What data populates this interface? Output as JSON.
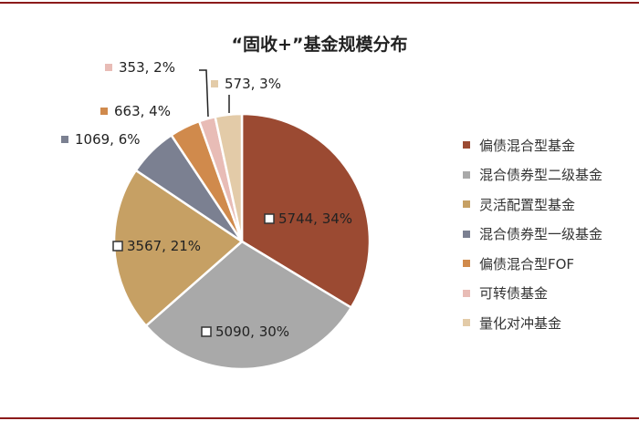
{
  "chart_data": {
    "type": "pie",
    "title": "“固收+”基金规模分布",
    "slices": [
      {
        "name": "偏债混合型基金",
        "value": 5744,
        "label": "5744, 34%",
        "color": "#9b4a32"
      },
      {
        "name": "混合债券型二级基金",
        "value": 5090,
        "label": "5090, 30%",
        "color": "#a9a9a9"
      },
      {
        "name": "灵活配置型基金",
        "value": 3567,
        "label": "3567, 21%",
        "color": "#c6a064"
      },
      {
        "name": "混合债券型一级基金",
        "value": 1069,
        "label": "1069, 6%",
        "color": "#7b8091"
      },
      {
        "name": "偏债混合型FOF",
        "value": 663,
        "label": "663, 4%",
        "color": "#d08a4c"
      },
      {
        "name": "可转债基金",
        "value": 353,
        "label": "353, 2%",
        "color": "#e8bcb6"
      },
      {
        "name": "量化对冲基金",
        "value": 573,
        "label": "573, 3%",
        "color": "#e3cba8"
      }
    ],
    "legend_position": "right"
  }
}
